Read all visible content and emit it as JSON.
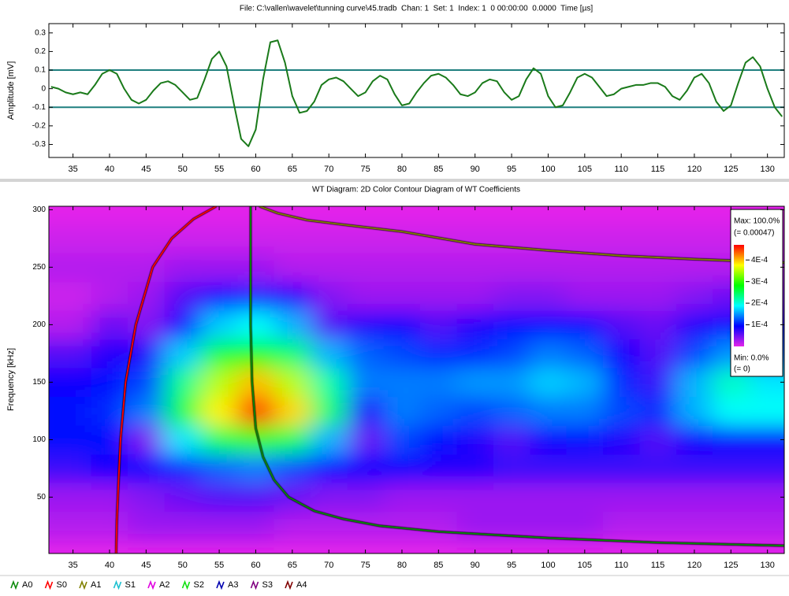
{
  "chart_data": [
    {
      "type": "line",
      "title": "File: C:\\vallen\\wavelet\\tunning curve\\45.tradb  Chan: 1  Set: 1  Index: 1  0 00:00:00  0.0000  Time [µs]",
      "y_label": "Amplitude [mV]",
      "x": [
        32,
        33,
        34,
        35,
        36,
        37,
        38,
        39,
        40,
        41,
        42,
        43,
        44,
        45,
        46,
        47,
        48,
        49,
        50,
        51,
        52,
        53,
        54,
        55,
        56,
        57,
        58,
        59,
        60,
        61,
        62,
        63,
        64,
        65,
        66,
        67,
        68,
        69,
        70,
        71,
        72,
        73,
        74,
        75,
        76,
        77,
        78,
        79,
        80,
        81,
        82,
        83,
        84,
        85,
        86,
        87,
        88,
        89,
        90,
        91,
        92,
        93,
        94,
        95,
        96,
        97,
        98,
        99,
        100,
        101,
        102,
        103,
        104,
        105,
        106,
        107,
        108,
        109,
        110,
        111,
        112,
        113,
        114,
        115,
        116,
        117,
        118,
        119,
        120,
        121,
        122,
        123,
        124,
        125,
        126,
        127,
        128,
        129,
        130,
        131,
        132
      ],
      "series": [
        {
          "color": "#1a7a1a",
          "values": [
            0.01,
            0,
            -0.02,
            -0.03,
            -0.02,
            -0.03,
            0.02,
            0.08,
            0.1,
            0.08,
            0,
            -0.06,
            -0.08,
            -0.06,
            -0.01,
            0.03,
            0.04,
            0.02,
            -0.02,
            -0.06,
            -0.05,
            0.05,
            0.16,
            0.2,
            0.12,
            -0.08,
            -0.27,
            -0.31,
            -0.22,
            0.05,
            0.25,
            0.26,
            0.14,
            -0.04,
            -0.13,
            -0.12,
            -0.07,
            0.02,
            0.05,
            0.06,
            0.04,
            0,
            -0.04,
            -0.02,
            0.04,
            0.07,
            0.05,
            -0.03,
            -0.09,
            -0.08,
            -0.02,
            0.03,
            0.07,
            0.08,
            0.06,
            0.02,
            -0.03,
            -0.04,
            -0.02,
            0.03,
            0.05,
            0.04,
            -0.02,
            -0.06,
            -0.04,
            0.05,
            0.11,
            0.08,
            -0.04,
            -0.1,
            -0.09,
            -0.02,
            0.06,
            0.08,
            0.06,
            0.01,
            -0.04,
            -0.03,
            0,
            0.01,
            0.02,
            0.02,
            0.03,
            0.03,
            0.01,
            -0.04,
            -0.06,
            -0.01,
            0.06,
            0.08,
            0.03,
            -0.07,
            -0.12,
            -0.09,
            0.03,
            0.14,
            0.17,
            0.12,
            0,
            -0.1,
            -0.15
          ]
        }
      ],
      "reference_lines": [
        0.1,
        -0.1
      ],
      "reference_color": "#1f7f7f",
      "xlim": [
        31.7,
        132.3
      ],
      "xticks": [
        35,
        40,
        45,
        50,
        55,
        60,
        65,
        70,
        75,
        80,
        85,
        90,
        95,
        100,
        105,
        110,
        115,
        120,
        125,
        130
      ],
      "ylim": [
        -0.37,
        0.35
      ],
      "yticks": [
        0.3,
        0.2,
        0.1,
        0,
        -0.1,
        -0.2,
        -0.3
      ]
    },
    {
      "type": "heatmap",
      "title": "WT Diagram: 2D Color Contour Diagram of WT Coefficients",
      "y_label": "Frequency [kHz]",
      "xlim": [
        31.7,
        132.3
      ],
      "xticks": [
        35,
        40,
        45,
        50,
        55,
        60,
        65,
        70,
        75,
        80,
        85,
        90,
        95,
        100,
        105,
        110,
        115,
        120,
        125,
        130
      ],
      "ylim": [
        1,
        303
      ],
      "yticks": [
        50,
        100,
        150,
        200,
        250,
        300
      ],
      "grid_x": [
        35,
        40,
        45,
        50,
        55,
        60,
        65,
        70,
        75,
        80,
        85,
        90,
        95,
        100,
        105,
        110,
        115,
        120,
        125,
        130
      ],
      "grid_y": [
        25,
        50,
        75,
        100,
        125,
        150,
        175,
        200,
        225,
        250,
        275,
        300
      ],
      "z": [
        [
          2e-05,
          2e-05,
          3e-05,
          3e-05,
          3e-05,
          3e-05,
          2e-05,
          2e-05,
          2e-05,
          2e-05,
          2e-05,
          3e-05,
          3e-05,
          3e-05,
          3e-05,
          2e-05,
          2e-05,
          2e-05,
          2e-05,
          2e-05
        ],
        [
          3e-05,
          3e-05,
          4e-05,
          5e-05,
          6e-05,
          6e-05,
          5e-05,
          4e-05,
          4e-05,
          3e-05,
          3e-05,
          3e-05,
          3e-05,
          3e-05,
          3e-05,
          3e-05,
          3e-05,
          3e-05,
          3e-05,
          3e-05
        ],
        [
          7e-05,
          9e-05,
          0.0001,
          0.00011,
          0.00013,
          0.00014,
          0.00012,
          0.0001,
          9e-05,
          9e-05,
          8e-05,
          8e-05,
          7e-05,
          7e-05,
          7e-05,
          7e-05,
          7e-05,
          7e-05,
          7e-05,
          7e-05
        ],
        [
          0.0001,
          0.0001,
          4e-05,
          0.00018,
          0.00025,
          0.0003,
          0.00025,
          0.00016,
          5e-05,
          0.00012,
          0.0001,
          8e-05,
          6e-05,
          9e-05,
          0.0001,
          8e-05,
          6e-05,
          9e-05,
          0.0001,
          0.0001
        ],
        [
          0.0001,
          0.00011,
          0.00014,
          0.00026,
          0.00038,
          0.00046,
          0.00039,
          0.00024,
          8e-05,
          0.00014,
          0.00013,
          0.00012,
          0.00013,
          0.00014,
          0.00014,
          0.00012,
          0.00011,
          0.00016,
          0.00019,
          0.00019
        ],
        [
          9e-05,
          0.0001,
          0.00012,
          0.00023,
          0.00035,
          0.0004,
          0.00035,
          0.00022,
          0.00014,
          0.00014,
          0.00014,
          0.00015,
          0.00015,
          0.00017,
          0.00016,
          0.00011,
          7e-05,
          0.00016,
          0.00021,
          0.00018
        ],
        [
          6e-05,
          8e-05,
          8e-05,
          0.00017,
          0.00026,
          0.00028,
          0.00024,
          0.00016,
          0.00013,
          0.00012,
          0.00011,
          0.00011,
          0.00012,
          0.00014,
          0.00013,
          9e-05,
          6e-05,
          0.00012,
          0.00015,
          0.00013
        ],
        [
          2e-05,
          5e-05,
          4e-05,
          0.0001,
          0.00017,
          0.00019,
          0.00016,
          6e-05,
          8e-05,
          9e-05,
          6e-05,
          8e-05,
          0.0001,
          0.0001,
          0.0001,
          6e-05,
          5e-05,
          8e-05,
          0.0001,
          9e-05
        ],
        [
          1e-05,
          2e-05,
          3e-05,
          6e-05,
          0.0001,
          0.00011,
          8e-05,
          4e-05,
          3e-05,
          3e-05,
          3e-05,
          3e-05,
          4e-05,
          4e-05,
          3e-05,
          3e-05,
          3e-05,
          4e-05,
          5e-05,
          4e-05
        ],
        [
          2e-05,
          2e-05,
          2e-05,
          3e-05,
          3e-05,
          3e-05,
          2e-05,
          2e-05,
          2e-05,
          2e-05,
          2e-05,
          2e-05,
          2e-05,
          2e-05,
          2e-05,
          2e-05,
          2e-05,
          2e-05,
          2e-05,
          2e-05
        ],
        [
          1e-05,
          1e-05,
          1e-05,
          1e-05,
          1e-05,
          1e-05,
          1e-05,
          1e-05,
          1e-05,
          1e-05,
          1e-05,
          1e-05,
          1e-05,
          1e-05,
          1e-05,
          1e-05,
          1e-05,
          1e-05,
          1e-05,
          1e-05
        ],
        [
          0,
          0,
          0,
          0,
          0,
          0,
          0,
          0,
          0,
          0,
          0,
          0,
          0,
          0,
          0,
          0,
          0,
          0,
          0,
          0
        ]
      ],
      "zlim": [
        0,
        0.00047
      ],
      "colormap": [
        "#e424ea",
        "#0000ff",
        "#00ffff",
        "#00ff00",
        "#ffff00",
        "#ff0000"
      ],
      "colorbar": {
        "max_label": "Max: 100.0%",
        "max_value_label": "(= 0.00047)",
        "min_label": "Min: 0.0%",
        "min_value_label": "(= 0)",
        "ticks": [
          {
            "value": 0.0004,
            "label": "4E-4"
          },
          {
            "value": 0.0003,
            "label": "3E-4"
          },
          {
            "value": 0.0002,
            "label": "2E-4"
          },
          {
            "value": 0.0001,
            "label": "1E-4"
          }
        ]
      },
      "series": [
        {
          "name": "A0",
          "color": "#0a8a0a",
          "x": [
            59.3,
            59.3,
            59.3,
            59.5,
            60,
            61,
            62.5,
            64.5,
            68,
            72,
            77,
            85,
            100,
            115,
            132.3
          ],
          "y": [
            303,
            250,
            200,
            150,
            110,
            85,
            65,
            50,
            38,
            31,
            25,
            20,
            14.5,
            10.5,
            7.8
          ]
        },
        {
          "name": "S0",
          "color": "#ff0000",
          "x": [
            40.9,
            41,
            41.2,
            41.5,
            42.2,
            43.6,
            45.9,
            48.5,
            51.5,
            54.6
          ],
          "y": [
            1,
            30,
            60,
            100,
            150,
            200,
            250,
            275,
            292,
            303
          ]
        },
        {
          "name": "A1",
          "color": "#808000",
          "x": [
            60.5,
            63,
            67,
            72,
            80,
            90,
            100,
            110,
            120,
            132.3
          ],
          "y": [
            303,
            297,
            291,
            287,
            281,
            270,
            264.6,
            260,
            257,
            254
          ]
        },
        {
          "name": "S1",
          "color": "#1cc0d0",
          "x": [],
          "y": []
        },
        {
          "name": "A2",
          "color": "#e000e0",
          "x": [],
          "y": []
        },
        {
          "name": "S2",
          "color": "#10e010",
          "x": [],
          "y": []
        },
        {
          "name": "A3",
          "color": "#0000b0",
          "x": [],
          "y": []
        },
        {
          "name": "S3",
          "color": "#800080",
          "x": [],
          "y": []
        },
        {
          "name": "A4",
          "color": "#800000",
          "x": [],
          "y": []
        }
      ]
    }
  ]
}
